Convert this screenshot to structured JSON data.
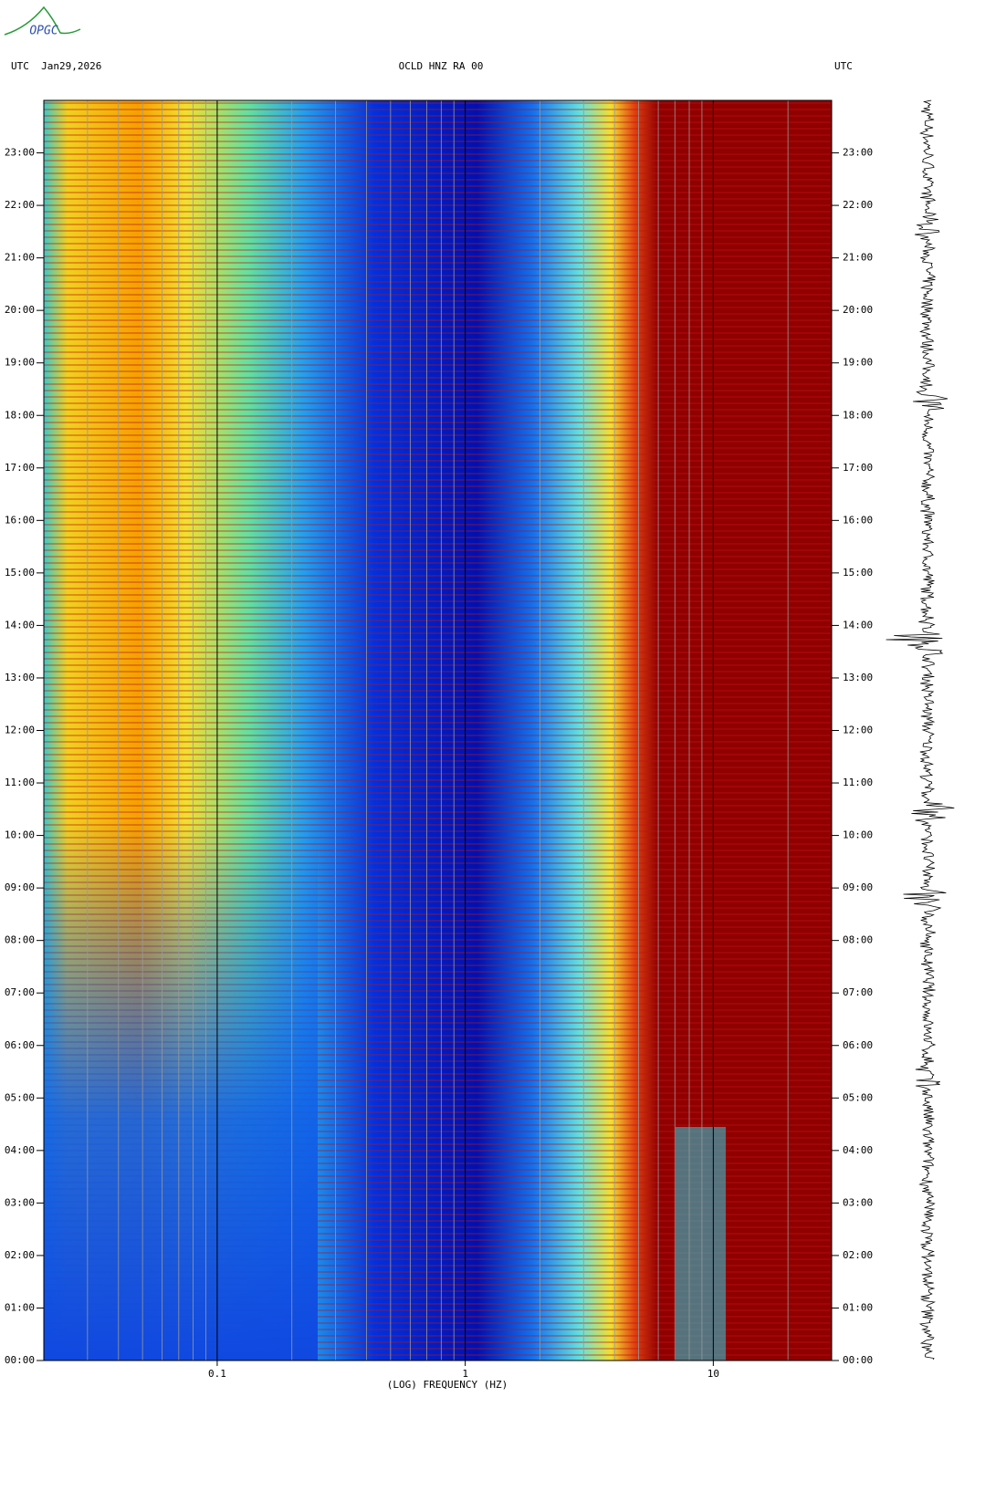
{
  "logo": "OPGC",
  "chart_data": {
    "type": "spectrogram",
    "title": "OCLD HNZ RA 00",
    "left_label": "UTC  Jan29,2026",
    "right_label": "UTC",
    "xlabel": "(LOG) FREQUENCY (HZ)",
    "xscale": "log",
    "xlim": [
      0.02,
      30
    ],
    "xticks": [
      {
        "value": 0.1,
        "label": "0.1"
      },
      1,
      10
    ],
    "xgrid": [
      0.02,
      0.03,
      0.04,
      0.05,
      0.06,
      0.07,
      0.08,
      0.09,
      0.2,
      0.3,
      0.4,
      0.5,
      0.6,
      0.7,
      0.8,
      0.9,
      2,
      3,
      4,
      5,
      6,
      7,
      8,
      9,
      20,
      30
    ],
    "ylim": [
      0,
      24
    ],
    "yticks": [
      {
        "value": 0,
        "label": "00:00"
      },
      {
        "value": 1,
        "label": "01:00"
      },
      {
        "value": 2,
        "label": "02:00"
      },
      {
        "value": 3,
        "label": "03:00"
      },
      {
        "value": 4,
        "label": "04:00"
      },
      {
        "value": 5,
        "label": "05:00"
      },
      {
        "value": 6,
        "label": "06:00"
      },
      {
        "value": 7,
        "label": "07:00"
      },
      {
        "value": 8,
        "label": "08:00"
      },
      {
        "value": 9,
        "label": "09:00"
      },
      {
        "value": 10,
        "label": "10:00"
      },
      {
        "value": 11,
        "label": "11:00"
      },
      {
        "value": 12,
        "label": "12:00"
      },
      {
        "value": 13,
        "label": "13:00"
      },
      {
        "value": 14,
        "label": "14:00"
      },
      {
        "value": 15,
        "label": "15:00"
      },
      {
        "value": 16,
        "label": "16:00"
      },
      {
        "value": 17,
        "label": "17:00"
      },
      {
        "value": 18,
        "label": "18:00"
      },
      {
        "value": 19,
        "label": "19:00"
      },
      {
        "value": 20,
        "label": "20:00"
      },
      {
        "value": 21,
        "label": "21:00"
      },
      {
        "value": 22,
        "label": "22:00"
      },
      {
        "value": 23,
        "label": "23:00"
      }
    ]
  }
}
